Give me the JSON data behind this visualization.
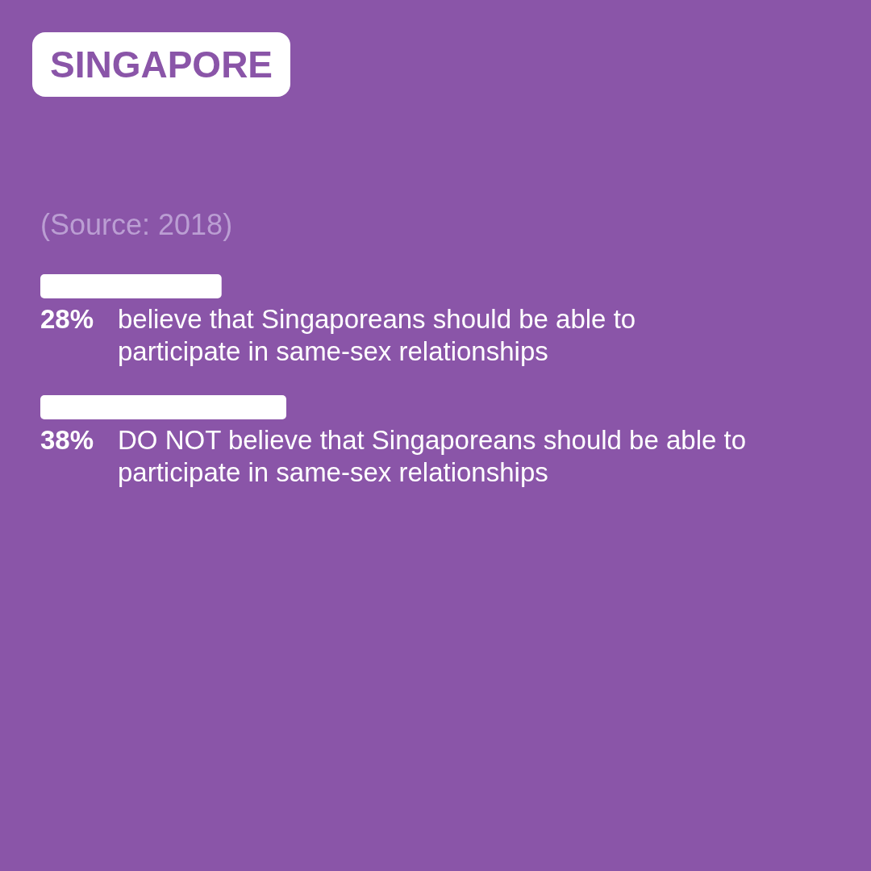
{
  "chart_data": {
    "type": "bar",
    "orientation": "horizontal",
    "title": "SINGAPORE",
    "annotations": [
      "(Source: 2018)"
    ],
    "categories": [
      "believe that Singaporeans should be able to participate in same-sex relationships",
      "DO NOT believe that Singaporeans should be able to participate in same-sex relationships"
    ],
    "values": [
      28,
      38
    ],
    "color": "#ffffff",
    "value_labels": [
      "28%",
      "38%"
    ],
    "tick_labels": false
  }
}
